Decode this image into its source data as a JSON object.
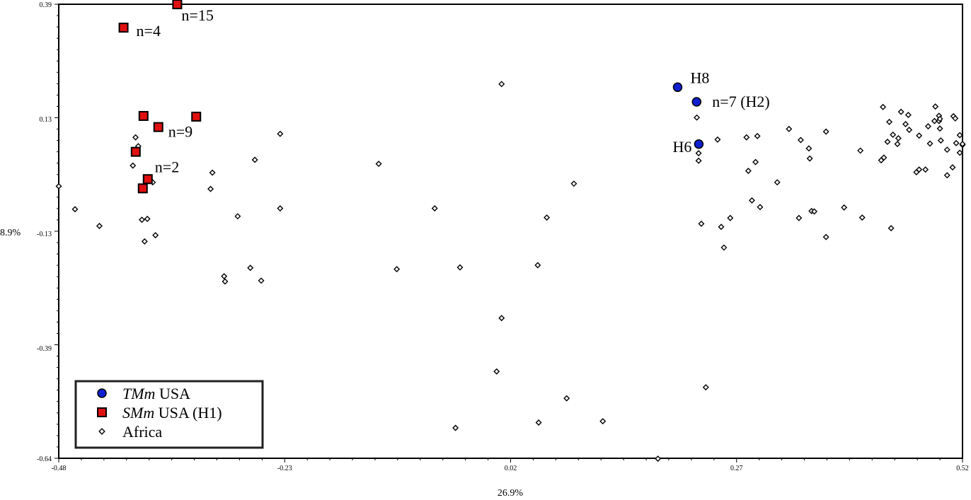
{
  "chart_data": {
    "type": "scatter",
    "xlabel": "26.9%",
    "ylabel": "8.9%",
    "xlim": [
      -0.48,
      0.52
    ],
    "ylim": [
      -0.64,
      0.39
    ],
    "x_ticks": [
      "-0.48",
      "-0.23",
      "0.02",
      "0.27",
      "0.52"
    ],
    "y_ticks": [
      "0.39",
      "0.13",
      "-0.13",
      "-0.39",
      "-0.64"
    ],
    "x_tick_values": [
      -0.48,
      -0.23,
      0.02,
      0.27,
      0.52
    ],
    "y_tick_values": [
      0.39,
      0.13,
      -0.13,
      -0.39,
      -0.64
    ],
    "legend_placement": "bottom-left",
    "legend": [
      {
        "italic": "TMm",
        "rest": " USA",
        "marker": "circle",
        "color": "#1020d0"
      },
      {
        "italic": "SMm",
        "rest": " USA (H1)",
        "marker": "square",
        "color": "#e01010"
      },
      {
        "italic": "",
        "rest": "Africa",
        "marker": "diamond",
        "color": "#ffffff"
      }
    ],
    "series": [
      {
        "marker": "circle",
        "color": "#1020d0",
        "points": [
          {
            "x": 0.2048,
            "y": 0.2018
          },
          {
            "x": 0.2258,
            "y": 0.1686
          },
          {
            "x": 0.2282,
            "y": 0.0727
          }
        ]
      },
      {
        "marker": "square",
        "color": "#e01010",
        "points": [
          {
            "x": -0.3489,
            "y": 0.3899
          },
          {
            "x": -0.4083,
            "y": 0.3369
          },
          {
            "x": -0.3862,
            "y": 0.1366
          },
          {
            "x": -0.3698,
            "y": 0.1114
          },
          {
            "x": -0.3279,
            "y": 0.135
          },
          {
            "x": -0.3948,
            "y": 0.0552
          },
          {
            "x": -0.3815,
            "y": -0.0067
          },
          {
            "x": -0.387,
            "y": -0.0277
          }
        ]
      },
      {
        "marker": "diamond",
        "color": "#ffffff",
        "points": [
          {
            "x": -0.48,
            "y": -0.023
          },
          {
            "x": -0.462,
            "y": -0.075
          },
          {
            "x": -0.435,
            "y": -0.113
          },
          {
            "x": -0.398,
            "y": 0.024
          },
          {
            "x": -0.395,
            "y": 0.088
          },
          {
            "x": -0.392,
            "y": 0.068
          },
          {
            "x": -0.388,
            "y": -0.099
          },
          {
            "x": -0.385,
            "y": -0.148
          },
          {
            "x": -0.382,
            "y": -0.097
          },
          {
            "x": -0.376,
            "y": -0.014
          },
          {
            "x": -0.373,
            "y": -0.134
          },
          {
            "x": -0.312,
            "y": -0.029
          },
          {
            "x": -0.31,
            "y": 0.008
          },
          {
            "x": -0.297,
            "y": -0.227
          },
          {
            "x": -0.296,
            "y": -0.239
          },
          {
            "x": -0.282,
            "y": -0.091
          },
          {
            "x": -0.268,
            "y": -0.208
          },
          {
            "x": -0.263,
            "y": 0.037
          },
          {
            "x": -0.256,
            "y": -0.237
          },
          {
            "x": -0.235,
            "y": 0.096
          },
          {
            "x": -0.235,
            "y": -0.073
          },
          {
            "x": -0.126,
            "y": 0.028
          },
          {
            "x": -0.106,
            "y": -0.211
          },
          {
            "x": -0.064,
            "y": -0.073
          },
          {
            "x": -0.036,
            "y": -0.207
          },
          {
            "x": -0.041,
            "y": -0.571
          },
          {
            "x": 0.01,
            "y": 0.209
          },
          {
            "x": 0.01,
            "y": -0.322
          },
          {
            "x": 0.0045,
            "y": -0.443
          },
          {
            "x": 0.05,
            "y": -0.202
          },
          {
            "x": 0.051,
            "y": -0.559
          },
          {
            "x": 0.06,
            "y": -0.094
          },
          {
            "x": 0.082,
            "y": -0.504
          },
          {
            "x": 0.09,
            "y": -0.017
          },
          {
            "x": 0.122,
            "y": -0.556
          },
          {
            "x": 0.183,
            "y": -0.641
          },
          {
            "x": 0.226,
            "y": 0.133
          },
          {
            "x": 0.228,
            "y": 0.052
          },
          {
            "x": 0.228,
            "y": 0.035
          },
          {
            "x": 0.231,
            "y": -0.108
          },
          {
            "x": 0.236,
            "y": -0.479
          },
          {
            "x": 0.249,
            "y": 0.083
          },
          {
            "x": 0.253,
            "y": -0.115
          },
          {
            "x": 0.256,
            "y": -0.162
          },
          {
            "x": 0.263,
            "y": -0.095
          },
          {
            "x": 0.281,
            "y": 0.088
          },
          {
            "x": 0.283,
            "y": 0.012
          },
          {
            "x": 0.287,
            "y": -0.055
          },
          {
            "x": 0.291,
            "y": 0.032
          },
          {
            "x": 0.293,
            "y": 0.091
          },
          {
            "x": 0.296,
            "y": -0.07
          },
          {
            "x": 0.315,
            "y": -0.014
          },
          {
            "x": 0.328,
            "y": 0.107
          },
          {
            "x": 0.339,
            "y": -0.095
          },
          {
            "x": 0.341,
            "y": 0.082
          },
          {
            "x": 0.35,
            "y": 0.063
          },
          {
            "x": 0.351,
            "y": 0.04
          },
          {
            "x": 0.353,
            "y": -0.079
          },
          {
            "x": 0.356,
            "y": -0.08
          },
          {
            "x": 0.369,
            "y": 0.101
          },
          {
            "x": 0.369,
            "y": -0.138
          },
          {
            "x": 0.389,
            "y": -0.071
          },
          {
            "x": 0.407,
            "y": 0.058
          },
          {
            "x": 0.409,
            "y": -0.094
          },
          {
            "x": 0.43,
            "y": 0.036
          },
          {
            "x": 0.432,
            "y": 0.157
          },
          {
            "x": 0.433,
            "y": 0.042
          },
          {
            "x": 0.437,
            "y": 0.078
          },
          {
            "x": 0.441,
            "y": -0.118
          },
          {
            "x": 0.443,
            "y": 0.094
          },
          {
            "x": 0.449,
            "y": 0.086
          },
          {
            "x": 0.457,
            "y": 0.118
          },
          {
            "x": 0.46,
            "y": 0.139
          },
          {
            "x": 0.461,
            "y": 0.105
          },
          {
            "x": 0.472,
            "y": 0.015
          },
          {
            "x": 0.479,
            "y": 0.015
          },
          {
            "x": 0.484,
            "y": 0.074
          },
          {
            "x": 0.489,
            "y": 0.125
          },
          {
            "x": 0.49,
            "y": 0.158
          },
          {
            "x": 0.494,
            "y": 0.137
          },
          {
            "x": 0.495,
            "y": 0.108
          },
          {
            "x": 0.494,
            "y": 0.125
          },
          {
            "x": 0.496,
            "y": 0.081
          },
          {
            "x": 0.513,
            "y": 0.075
          },
          {
            "x": 0.52,
            "y": 0.071
          },
          {
            "x": 0.51,
            "y": 0.136
          },
          {
            "x": 0.495,
            "y": 0.13
          },
          {
            "x": 0.472,
            "y": 0.092
          },
          {
            "x": 0.482,
            "y": 0.113
          },
          {
            "x": 0.503,
            "y": 0.002
          },
          {
            "x": 0.469,
            "y": 0.009
          },
          {
            "x": 0.448,
            "y": 0.073
          },
          {
            "x": 0.439,
            "y": 0.123
          },
          {
            "x": 0.452,
            "y": 0.146
          },
          {
            "x": 0.512,
            "y": 0.131
          },
          {
            "x": 0.517,
            "y": 0.093
          },
          {
            "x": 0.52,
            "y": 0.073
          },
          {
            "x": 0.503,
            "y": 0.06
          },
          {
            "x": 0.509,
            "y": 0.02
          },
          {
            "x": 0.517,
            "y": 0.053
          }
        ]
      }
    ],
    "annotations": [
      {
        "text": "n=15",
        "x": -0.3489,
        "y": 0.3899
      },
      {
        "text": "n=4",
        "x": -0.4083,
        "y": 0.3369
      },
      {
        "text": "n=9",
        "x": -0.3698,
        "y": 0.1114
      },
      {
        "text": "n=2",
        "x": -0.3815,
        "y": -0.0067
      },
      {
        "text": "H8",
        "x": 0.2048,
        "y": 0.2018
      },
      {
        "text": "n=7 (H2)",
        "x": 0.2258,
        "y": 0.1686
      },
      {
        "text": "H6",
        "x": 0.2282,
        "y": 0.0727
      }
    ]
  }
}
